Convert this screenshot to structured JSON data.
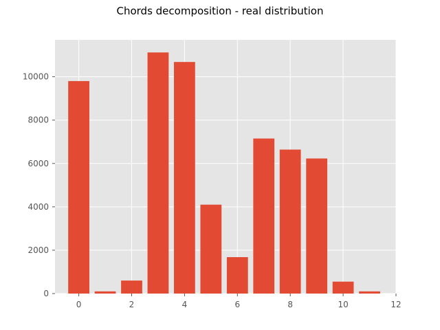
{
  "chart_data": {
    "type": "bar",
    "title": "Chords decomposition - real distribution",
    "xlabel": "",
    "ylabel": "",
    "x": [
      0,
      1,
      2,
      3,
      4,
      5,
      6,
      7,
      8,
      9,
      10,
      11
    ],
    "values": [
      9800,
      100,
      600,
      11120,
      10680,
      4100,
      1680,
      7150,
      6640,
      6230,
      550,
      100
    ],
    "xlim": [
      -0.9,
      12
    ],
    "ylim": [
      0,
      11700
    ],
    "xticks": [
      0,
      2,
      4,
      6,
      8,
      10,
      12
    ],
    "yticks": [
      0,
      2000,
      4000,
      6000,
      8000,
      10000
    ],
    "xtick_labels": [
      "0",
      "2",
      "4",
      "6",
      "8",
      "10",
      "12"
    ],
    "ytick_labels": [
      "0",
      "2000",
      "4000",
      "6000",
      "8000",
      "10000"
    ],
    "bar_width": 0.8,
    "bar_color": "#E24A33",
    "background_color": "#E5E5E5",
    "grid": true,
    "grid_color": "#FFFFFF",
    "style": "ggplot"
  }
}
